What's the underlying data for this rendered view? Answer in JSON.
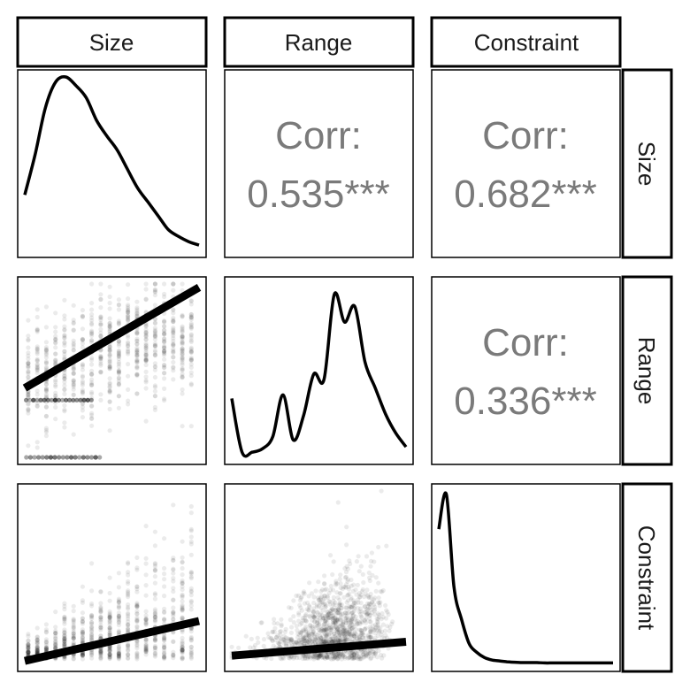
{
  "chart_data": {
    "type": "scatter-matrix",
    "variables": [
      "Size",
      "Range",
      "Constraint"
    ],
    "correlations": [
      {
        "row": "Size",
        "col": "Range",
        "label": "Corr:",
        "value": "0.535***"
      },
      {
        "row": "Size",
        "col": "Constraint",
        "label": "Corr:",
        "value": "0.682***"
      },
      {
        "row": "Range",
        "col": "Constraint",
        "label": "Corr:",
        "value": "0.336***"
      }
    ],
    "densities": {
      "Size": [
        0.32,
        0.55,
        0.82,
        0.97,
        1.0,
        0.95,
        0.88,
        0.75,
        0.66,
        0.58,
        0.47,
        0.36,
        0.28,
        0.2,
        0.12,
        0.08,
        0.05,
        0.03
      ],
      "Range": [
        0.34,
        0.03,
        0.03,
        0.05,
        0.12,
        0.36,
        0.1,
        0.24,
        0.48,
        0.45,
        0.94,
        0.78,
        0.87,
        0.55,
        0.4,
        0.25,
        0.14,
        0.06
      ],
      "Constraint": [
        0.78,
        0.98,
        0.45,
        0.26,
        0.12,
        0.07,
        0.04,
        0.025,
        0.02,
        0.015,
        0.012,
        0.01,
        0.01,
        0.01,
        0.008,
        0.008,
        0.008,
        0.008,
        0.008,
        0.008,
        0.008,
        0.008,
        0.008,
        0.008
      ]
    },
    "scatter_panels": [
      {
        "x": "Size",
        "y": "Range",
        "fit_line": {
          "from": [
            0.0,
            0.4
          ],
          "to": [
            1.0,
            0.98
          ]
        }
      },
      {
        "x": "Size",
        "y": "Constraint",
        "fit_line": {
          "from": [
            0.0,
            0.02
          ],
          "to": [
            1.0,
            0.25
          ]
        }
      },
      {
        "x": "Range",
        "y": "Constraint",
        "fit_line": {
          "from": [
            0.0,
            0.05
          ],
          "to": [
            1.0,
            0.13
          ]
        }
      }
    ]
  }
}
